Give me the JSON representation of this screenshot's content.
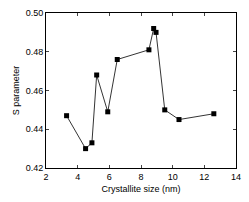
{
  "chart_data": {
    "type": "line",
    "x_label": "Crystallite size (nm)",
    "y_label": "S parameter",
    "x": [
      3.3,
      4.5,
      4.9,
      5.2,
      5.9,
      6.5,
      8.5,
      8.8,
      8.95,
      9.5,
      10.4,
      12.6
    ],
    "values": [
      0.447,
      0.43,
      0.433,
      0.468,
      0.449,
      0.476,
      0.481,
      0.492,
      0.49,
      0.45,
      0.445,
      0.448
    ],
    "color": "#000000",
    "marker": "square",
    "xlim": [
      2,
      14
    ],
    "xticks": [
      2,
      4,
      6,
      8,
      10,
      12,
      14
    ],
    "ylim": [
      0.42,
      0.5
    ],
    "yticks": [
      0.42,
      0.44,
      0.46,
      0.48,
      {
        "value": 0.5,
        "label": "0.50"
      }
    ],
    "grid": false
  }
}
